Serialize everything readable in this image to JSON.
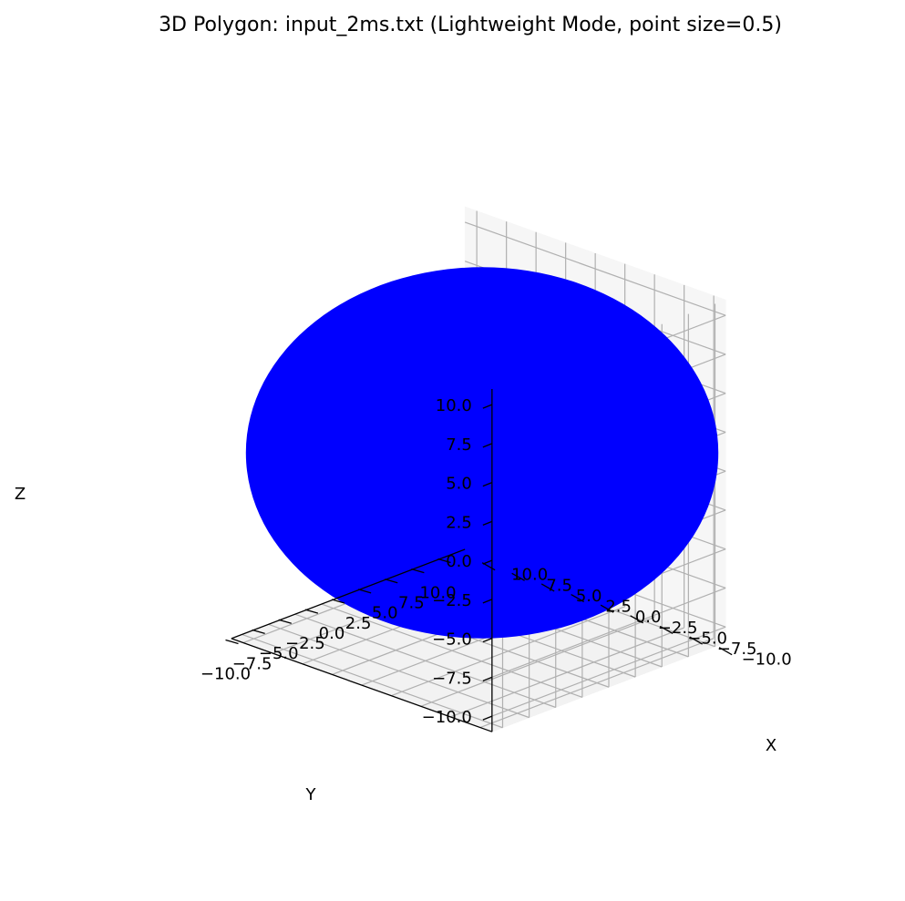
{
  "chart_data": {
    "type": "scatter",
    "projection": "3d",
    "title": "3D Polygon: input_2ms.txt (Lightweight Mode, point size=0.5)",
    "xlabel": "X",
    "ylabel": "Y",
    "zlabel": "Z",
    "xlim": [
      -11,
      11
    ],
    "ylim": [
      -11,
      11
    ],
    "zlim": [
      -11,
      11
    ],
    "x_ticks": [
      "−10.0",
      "−7.5",
      "−5.0",
      "−2.5",
      "0.0",
      "2.5",
      "5.0",
      "7.5",
      "10.0"
    ],
    "y_ticks": [
      "−10.0",
      "−7.5",
      "−5.0",
      "−2.5",
      "0.0",
      "2.5",
      "5.0",
      "7.5",
      "10.0"
    ],
    "z_ticks": [
      "−10.0",
      "−7.5",
      "−5.0",
      "−2.5",
      "0.0",
      "2.5",
      "5.0",
      "7.5",
      "10.0"
    ],
    "grid": true,
    "series": [
      {
        "shape": "sphere",
        "center": [
          0,
          0,
          0
        ],
        "radius": 10,
        "point_size": 0.5,
        "color": "#0000ff"
      }
    ],
    "pane_color": "#f2f2f2",
    "grid_color": "#b0b0b0"
  }
}
